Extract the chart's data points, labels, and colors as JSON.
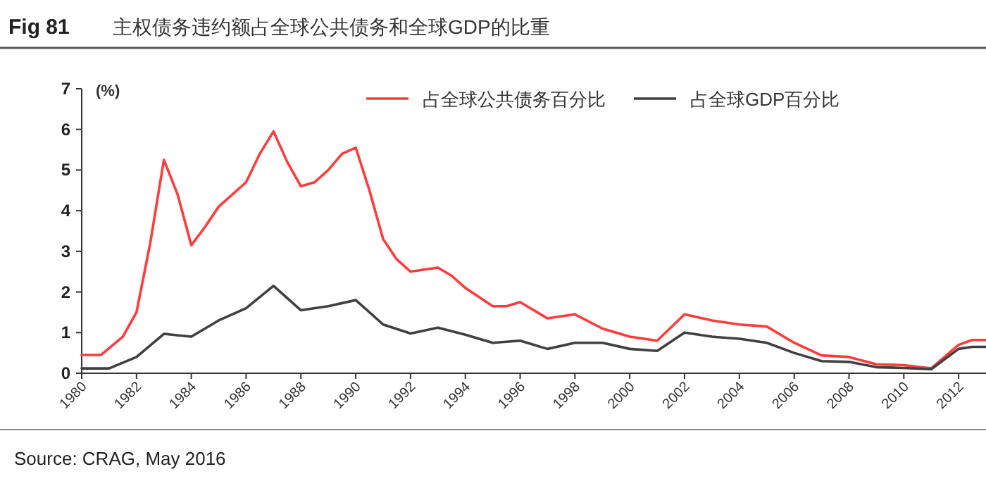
{
  "chart_data": {
    "type": "line",
    "title": "Fig 81",
    "subtitle": "主权债务违约额占全球公共债务和全球GDP的比重",
    "ylabel": "(%)",
    "xlim": [
      1980,
      2013
    ],
    "xticks": [
      1980,
      1982,
      1984,
      1986,
      1988,
      1990,
      1992,
      1994,
      1996,
      1998,
      2000,
      2002,
      2004,
      2006,
      2008,
      2010,
      2012
    ],
    "ylim": [
      0,
      7
    ],
    "yticks": [
      0,
      1,
      2,
      3,
      4,
      5,
      6,
      7
    ],
    "legend": "top right",
    "grid": false,
    "marker": "none",
    "line_style": "solid",
    "series": [
      {
        "name": "占全球公共债务百分比",
        "color": "#ff3b3b",
        "x": [
          1980,
          1980.7,
          1981.5,
          1982,
          1982.5,
          1983,
          1983.5,
          1984,
          1984.5,
          1985,
          1986,
          1986.5,
          1987,
          1987.5,
          1988,
          1988.5,
          1989,
          1989.5,
          1990,
          1990.5,
          1991,
          1991.5,
          1992,
          1992.5,
          1993,
          1993.5,
          1994,
          1995,
          1995.5,
          1996,
          1997,
          1998,
          1999,
          2000,
          2001,
          2002,
          2003,
          2004,
          2005,
          2006,
          2007,
          2008,
          2009,
          2010,
          2011,
          2012,
          2012.5,
          2013
        ],
        "values": [
          0.45,
          0.45,
          0.9,
          1.5,
          3.2,
          5.25,
          4.4,
          3.15,
          3.6,
          4.1,
          4.7,
          5.4,
          5.95,
          5.2,
          4.6,
          4.7,
          5.0,
          5.4,
          5.55,
          4.5,
          3.3,
          2.8,
          2.5,
          2.55,
          2.6,
          2.4,
          2.1,
          1.65,
          1.65,
          1.75,
          1.35,
          1.45,
          1.1,
          0.9,
          0.8,
          1.45,
          1.3,
          1.2,
          1.15,
          0.75,
          0.44,
          0.4,
          0.22,
          0.2,
          0.12,
          0.7,
          0.82,
          0.82
        ]
      },
      {
        "name": "占全球GDP百分比",
        "color": "#404040",
        "x": [
          1980,
          1981,
          1982,
          1983,
          1984,
          1985,
          1986,
          1987,
          1988,
          1989,
          1990,
          1991,
          1992,
          1993,
          1994,
          1995,
          1996,
          1997,
          1998,
          1999,
          2000,
          2001,
          2002,
          2003,
          2004,
          2005,
          2006,
          2007,
          2008,
          2009,
          2010,
          2011,
          2012,
          2012.5,
          2013
        ],
        "values": [
          0.12,
          0.12,
          0.4,
          0.97,
          0.9,
          1.3,
          1.6,
          2.15,
          1.55,
          1.65,
          1.8,
          1.2,
          0.98,
          1.12,
          0.95,
          0.75,
          0.8,
          0.6,
          0.75,
          0.75,
          0.6,
          0.55,
          1.0,
          0.9,
          0.85,
          0.75,
          0.5,
          0.3,
          0.28,
          0.15,
          0.13,
          0.1,
          0.6,
          0.65,
          0.65
        ]
      }
    ],
    "annotations": [
      "Source: CRAG, May 2016"
    ]
  }
}
